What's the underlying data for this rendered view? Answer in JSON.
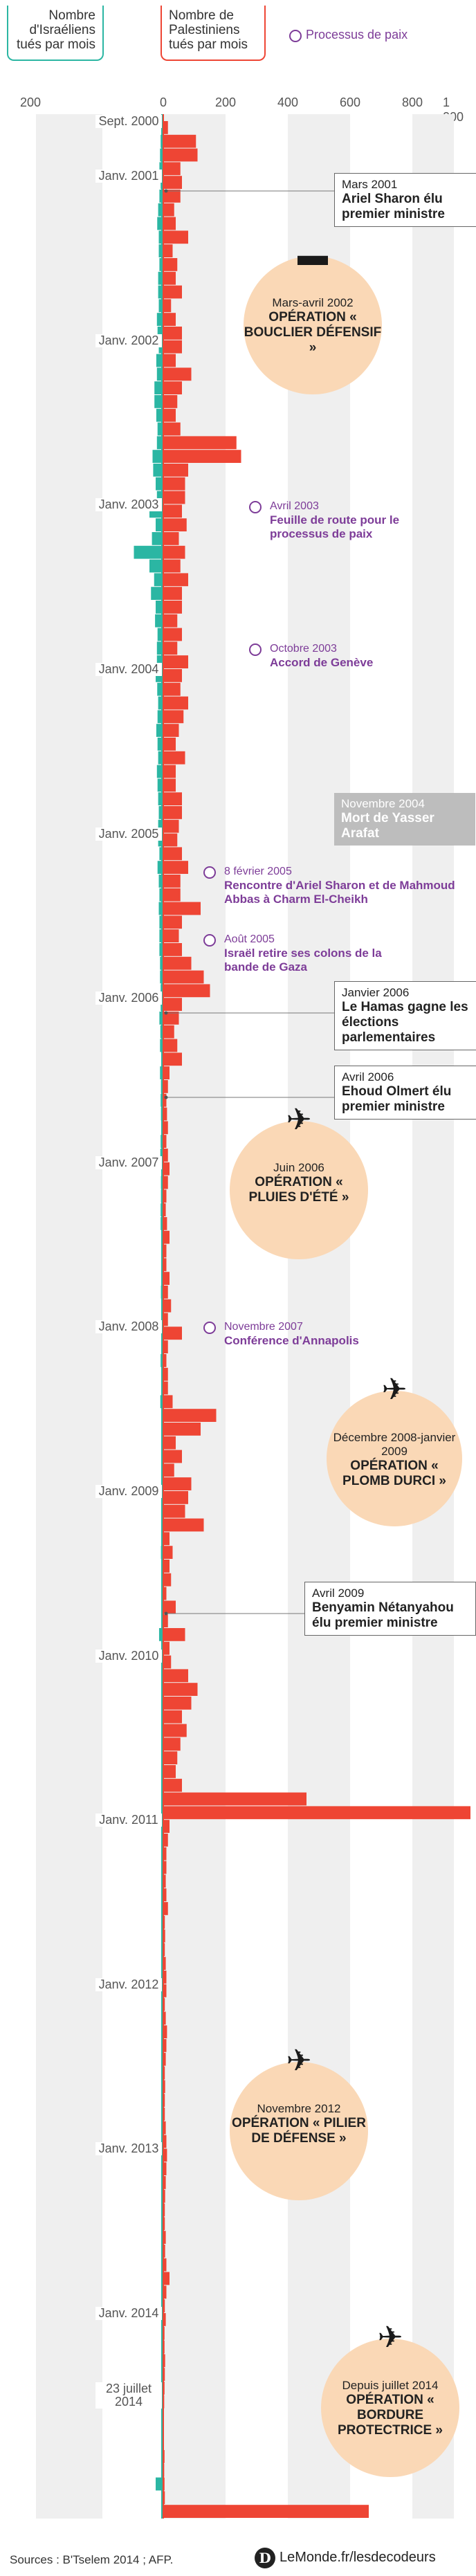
{
  "header": {
    "israeli_label": "Nombre d'Israéliens tués par mois",
    "palestinian_label": "Nombre de Palestiniens tués par mois",
    "peace_legend": "Processus de paix"
  },
  "chart_data": {
    "type": "bar",
    "orientation": "horizontal-diverging",
    "start_month": "2000-09",
    "end_month": "2014-07",
    "left_ticks": [
      "200"
    ],
    "right_ticks": [
      "0",
      "200",
      "400",
      "600",
      "800",
      "1 000"
    ],
    "xlim_left": [
      0,
      200
    ],
    "xlim_right": [
      0,
      1000
    ],
    "y_labels": [
      {
        "month": "2000-09",
        "label": "Sept. 2000"
      },
      {
        "month": "2001-01",
        "label": "Janv. 2001"
      },
      {
        "month": "2002-01",
        "label": "Janv. 2002"
      },
      {
        "month": "2003-01",
        "label": "Janv. 2003"
      },
      {
        "month": "2004-01",
        "label": "Janv. 2004"
      },
      {
        "month": "2005-01",
        "label": "Janv. 2005"
      },
      {
        "month": "2006-01",
        "label": "Janv. 2006"
      },
      {
        "month": "2007-01",
        "label": "Janv. 2007"
      },
      {
        "month": "2008-01",
        "label": "Janv. 2008"
      },
      {
        "month": "2009-01",
        "label": "Janv. 2009"
      },
      {
        "month": "2010-01",
        "label": "Janv. 2010"
      },
      {
        "month": "2011-01",
        "label": "Janv. 2011"
      },
      {
        "month": "2012-01",
        "label": "Janv. 2012"
      },
      {
        "month": "2013-01",
        "label": "Janv. 2013"
      },
      {
        "month": "2014-01",
        "label": "Janv. 2014"
      },
      {
        "month": "2014-07",
        "label": "23 juillet 2014"
      }
    ],
    "series": [
      {
        "name": "Nombre d'Israéliens tués par mois",
        "color": "#2bb6a3",
        "values": [
          2,
          4,
          6,
          8,
          4,
          8,
          12,
          15,
          10,
          10,
          8,
          12,
          12,
          10,
          16,
          14,
          10,
          18,
          16,
          24,
          24,
          18,
          14,
          16,
          30,
          28,
          20,
          16,
          40,
          20,
          32,
          90,
          40,
          25,
          35,
          20,
          22,
          14,
          16,
          16,
          20,
          15,
          12,
          14,
          18,
          14,
          12,
          16,
          14,
          12,
          10,
          12,
          12,
          8,
          14,
          10,
          8,
          10,
          8,
          8,
          8,
          6,
          6,
          4,
          4,
          8,
          5,
          6,
          2,
          6,
          3,
          4,
          3,
          2,
          4,
          5,
          2,
          3,
          3,
          4,
          4,
          2,
          2,
          2,
          2,
          3,
          1,
          2,
          1,
          1,
          4,
          1,
          1,
          5,
          2,
          2,
          2,
          0,
          1,
          0,
          2,
          1,
          1,
          2,
          3,
          2,
          1,
          1,
          2,
          2,
          9,
          2,
          1,
          1,
          1,
          1,
          0,
          0,
          1,
          0,
          0,
          1,
          0,
          1,
          0,
          1,
          1,
          1,
          1,
          0,
          2,
          0,
          1,
          1,
          0,
          1,
          1,
          0,
          1,
          1,
          0,
          0,
          1,
          0,
          0,
          1,
          0,
          1,
          1,
          0,
          2,
          1,
          1,
          1,
          1,
          0,
          0,
          1,
          0,
          1,
          1,
          1,
          0,
          1,
          0,
          0,
          1,
          1,
          0,
          0,
          1,
          0,
          20
        ]
      },
      {
        "name": "Nombre de Palestiniens tués par mois",
        "color": "#ee4534",
        "values": [
          15,
          105,
          110,
          55,
          60,
          55,
          35,
          40,
          80,
          30,
          45,
          40,
          60,
          25,
          40,
          60,
          60,
          40,
          90,
          60,
          45,
          40,
          55,
          235,
          250,
          80,
          70,
          70,
          60,
          75,
          50,
          70,
          55,
          80,
          60,
          60,
          45,
          60,
          45,
          80,
          60,
          55,
          80,
          65,
          50,
          40,
          70,
          40,
          40,
          60,
          60,
          50,
          45,
          60,
          80,
          55,
          55,
          120,
          60,
          50,
          60,
          90,
          130,
          150,
          60,
          50,
          35,
          45,
          60,
          20,
          15,
          10,
          12,
          15,
          10,
          15,
          20,
          15,
          10,
          8,
          12,
          20,
          10,
          10,
          20,
          15,
          25,
          15,
          60,
          15,
          10,
          15,
          15,
          30,
          170,
          120,
          40,
          60,
          35,
          90,
          80,
          70,
          130,
          20,
          30,
          20,
          25,
          10,
          40,
          15,
          70,
          20,
          25,
          80,
          110,
          90,
          60,
          75,
          55,
          45,
          40,
          60,
          460,
          1000,
          20,
          15,
          10,
          10,
          8,
          10,
          15,
          5,
          6,
          5,
          8,
          10,
          10,
          5,
          8,
          12,
          10,
          8,
          5,
          6,
          5,
          5,
          8,
          10,
          12,
          10,
          8,
          6,
          5,
          5,
          8,
          6,
          10,
          20,
          10,
          5,
          8,
          4,
          4,
          6,
          5,
          4,
          3,
          2,
          2,
          2,
          4,
          3,
          4,
          5,
          660
        ]
      }
    ]
  },
  "events": [
    {
      "kind": "box",
      "date": "Mars 2001",
      "title": "Ariel Sharon élu premier ministre"
    },
    {
      "kind": "operation",
      "date": "Mars-avril 2002",
      "title": "OPÉRATION « BOUCLIER DÉFENSIF »",
      "icon": "tank-icon"
    },
    {
      "kind": "peace",
      "date": "Avril 2003",
      "title": "Feuille de route pour le processus de paix"
    },
    {
      "kind": "peace",
      "date": "Octobre 2003",
      "title": "Accord de Genève"
    },
    {
      "kind": "gray",
      "date": "Novembre 2004",
      "title": "Mort de Yasser Arafat"
    },
    {
      "kind": "peace",
      "date": "8 février 2005",
      "title": "Rencontre d'Ariel Sharon et de Mahmoud Abbas à Charm El-Cheikh"
    },
    {
      "kind": "peace",
      "date": "Août 2005",
      "title": "Israël retire ses colons de la bande de Gaza"
    },
    {
      "kind": "box",
      "date": "Janvier 2006",
      "title": "Le Hamas gagne les élections parlementaires"
    },
    {
      "kind": "box",
      "date": "Avril 2006",
      "title": "Ehoud Olmert élu premier ministre"
    },
    {
      "kind": "operation",
      "date": "Juin 2006",
      "title": "OPÉRATION « PLUIES D'ÉTÉ »",
      "icon": "jet-tank-icon"
    },
    {
      "kind": "peace",
      "date": "Novembre 2007",
      "title": "Conférence d'Annapolis"
    },
    {
      "kind": "operation",
      "date": "Décembre 2008-janvier 2009",
      "title": "OPÉRATION « PLOMB DURCI »",
      "icon": "jet-tank-icon"
    },
    {
      "kind": "box",
      "date": "Avril 2009",
      "title": "Benyamin Nétanyahou élu premier ministre"
    },
    {
      "kind": "operation",
      "date": "Novembre 2012",
      "title": "OPÉRATION « PILIER DE DÉFENSE »",
      "icon": "jet-tank-icon"
    },
    {
      "kind": "operation",
      "date": "Depuis juillet 2014",
      "title": "OPÉRATION « BORDURE PROTECTRICE »",
      "icon": "jet-tank-icon"
    }
  ],
  "footer": {
    "source": "Sources : B'Tselem 2014 ; AFP.",
    "logo_text": "LeMonde.fr/lesdecodeurs",
    "logo_letter": "D"
  }
}
